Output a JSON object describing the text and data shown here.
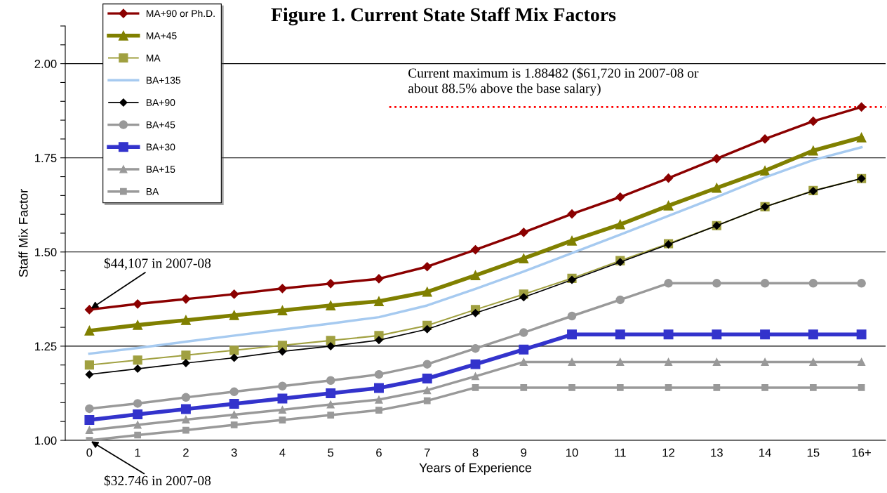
{
  "chart_data": {
    "type": "line",
    "title": "Figure 1. Current State Staff Mix Factors",
    "xlabel": "Years of Experience",
    "ylabel": "Staff Mix Factor",
    "categories": [
      "0",
      "1",
      "2",
      "3",
      "4",
      "5",
      "6",
      "7",
      "8",
      "9",
      "10",
      "11",
      "12",
      "13",
      "14",
      "15",
      "16+"
    ],
    "series": [
      {
        "name": "MA+90 or Ph.D.",
        "color": "#8b0000",
        "marker": "diamond",
        "values": [
          1.347,
          1.362,
          1.375,
          1.388,
          1.403,
          1.416,
          1.429,
          1.461,
          1.506,
          1.552,
          1.601,
          1.646,
          1.696,
          1.748,
          1.8,
          1.847,
          1.885
        ]
      },
      {
        "name": "MA+45",
        "color": "#808000",
        "marker": "triangle",
        "values": [
          1.291,
          1.306,
          1.319,
          1.332,
          1.345,
          1.358,
          1.369,
          1.394,
          1.438,
          1.483,
          1.53,
          1.573,
          1.623,
          1.67,
          1.716,
          1.769,
          1.804
        ]
      },
      {
        "name": "MA",
        "color": "#a0a040",
        "marker": "square",
        "values": [
          1.2,
          1.213,
          1.226,
          1.239,
          1.252,
          1.265,
          1.278,
          1.305,
          1.347,
          1.388,
          1.43,
          1.477,
          1.522,
          1.57,
          1.62,
          1.663,
          1.695
        ]
      },
      {
        "name": "BA+135",
        "color": "#a6caf0",
        "marker": "none",
        "values": [
          1.23,
          1.245,
          1.262,
          1.278,
          1.294,
          1.31,
          1.327,
          1.358,
          1.402,
          1.448,
          1.497,
          1.546,
          1.596,
          1.646,
          1.698,
          1.744,
          1.778
        ]
      },
      {
        "name": "BA+90",
        "color": "#000000",
        "marker": "diamond",
        "values": [
          1.175,
          1.19,
          1.205,
          1.219,
          1.236,
          1.25,
          1.266,
          1.295,
          1.338,
          1.38,
          1.426,
          1.473,
          1.52,
          1.57,
          1.62,
          1.662,
          1.695
        ]
      },
      {
        "name": "BA+45",
        "color": "#999999",
        "marker": "circle",
        "values": [
          1.084,
          1.098,
          1.114,
          1.129,
          1.144,
          1.159,
          1.175,
          1.202,
          1.244,
          1.286,
          1.33,
          1.373,
          1.417,
          1.417,
          1.417,
          1.417,
          1.417
        ]
      },
      {
        "name": "BA+30",
        "color": "#3333cc",
        "marker": "square",
        "values": [
          1.054,
          1.069,
          1.083,
          1.097,
          1.111,
          1.125,
          1.139,
          1.164,
          1.202,
          1.241,
          1.281,
          1.281,
          1.281,
          1.281,
          1.281,
          1.281,
          1.281
        ]
      },
      {
        "name": "BA+15",
        "color": "#999999",
        "marker": "triangle",
        "values": [
          1.027,
          1.041,
          1.055,
          1.068,
          1.081,
          1.095,
          1.108,
          1.133,
          1.17,
          1.208,
          1.208,
          1.208,
          1.208,
          1.208,
          1.208,
          1.208,
          1.208
        ]
      },
      {
        "name": "BA",
        "color": "#999999",
        "marker": "square",
        "values": [
          1.0,
          1.014,
          1.027,
          1.041,
          1.054,
          1.067,
          1.08,
          1.105,
          1.14,
          1.14,
          1.14,
          1.14,
          1.14,
          1.14,
          1.14,
          1.14,
          1.14
        ]
      }
    ],
    "ylim": [
      1.0,
      2.1
    ],
    "yticks": [
      {
        "value": 1.0,
        "label": "1.00"
      },
      {
        "value": 1.05,
        "label": null
      },
      {
        "value": 1.1,
        "label": null
      },
      {
        "value": 1.15,
        "label": null
      },
      {
        "value": 1.2,
        "label": null
      },
      {
        "value": 1.25,
        "label": "1.25"
      },
      {
        "value": 1.3,
        "label": null
      },
      {
        "value": 1.35,
        "label": null
      },
      {
        "value": 1.4,
        "label": null
      },
      {
        "value": 1.45,
        "label": null
      },
      {
        "value": 1.5,
        "label": "1.50"
      },
      {
        "value": 1.55,
        "label": null
      },
      {
        "value": 1.6,
        "label": null
      },
      {
        "value": 1.65,
        "label": null
      },
      {
        "value": 1.7,
        "label": null
      },
      {
        "value": 1.75,
        "label": "1.75"
      },
      {
        "value": 1.8,
        "label": null
      },
      {
        "value": 1.85,
        "label": null
      },
      {
        "value": 1.9,
        "label": null
      },
      {
        "value": 1.95,
        "label": null
      },
      {
        "value": 2.0,
        "label": "2.00"
      },
      {
        "value": 2.05,
        "label": null
      },
      {
        "value": 2.1,
        "label": null
      }
    ],
    "grid": "y",
    "legend": "top left",
    "ref_lines": [
      {
        "axis": "y",
        "value": 1.88482,
        "label": "Current maximum is 1.88482 ($61,720 in 2007-08 or\nabout 88.5% above the base salary)",
        "color": "#ff0000",
        "line_style": "dotted"
      }
    ],
    "annotations": [
      {
        "text": "$44,107 in 2007-08",
        "x": "0",
        "y": 1.347
      },
      {
        "text": "$32.746 in 2007-08",
        "x": "0",
        "y": 1.0
      }
    ]
  }
}
